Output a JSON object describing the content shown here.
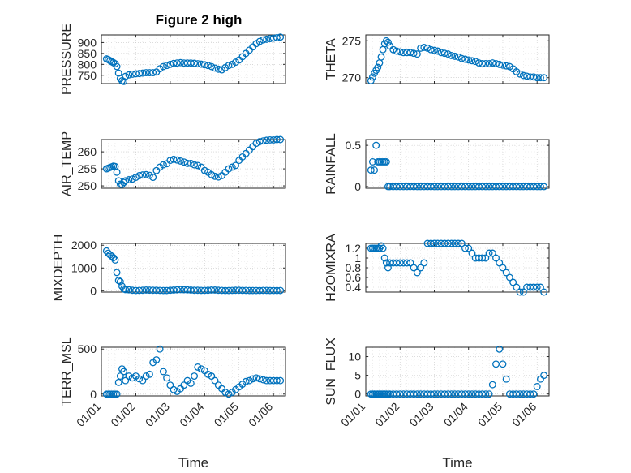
{
  "figure": {
    "title": "Figure 2 high",
    "marker_color": "#0072BD"
  },
  "chart_data": [
    {
      "id": "pressure",
      "type": "scatter",
      "marker": "circle",
      "ylabel": "PRESSURE",
      "yticks": [
        "750",
        "800",
        "850",
        "900"
      ],
      "ylim": [
        712,
        935
      ],
      "xlim": [
        0,
        5.35
      ],
      "xticklabels": [
        "",
        "",
        "",
        "",
        "",
        ""
      ],
      "xlabel": "",
      "x": [
        0.15,
        0.2,
        0.25,
        0.3,
        0.35,
        0.4,
        0.45,
        0.5,
        0.55,
        0.6,
        0.65,
        0.7,
        0.8,
        0.9,
        1.0,
        1.1,
        1.2,
        1.3,
        1.4,
        1.5,
        1.6,
        1.7,
        1.8,
        1.9,
        2.0,
        2.1,
        2.2,
        2.3,
        2.4,
        2.5,
        2.6,
        2.7,
        2.8,
        2.9,
        3.0,
        3.1,
        3.2,
        3.3,
        3.4,
        3.5,
        3.6,
        3.7,
        3.8,
        3.9,
        4.0,
        4.1,
        4.2,
        4.3,
        4.4,
        4.5,
        4.6,
        4.7,
        4.8,
        4.9,
        5.0,
        5.1,
        5.2
      ],
      "y": [
        825,
        822,
        817,
        812,
        808,
        803,
        790,
        760,
        735,
        725,
        722,
        745,
        752,
        755,
        757,
        758,
        760,
        762,
        762,
        762,
        765,
        780,
        790,
        795,
        800,
        804,
        806,
        808,
        806,
        806,
        806,
        805,
        803,
        801,
        798,
        795,
        790,
        783,
        778,
        775,
        785,
        795,
        800,
        810,
        820,
        835,
        850,
        865,
        880,
        895,
        905,
        912,
        915,
        918,
        920,
        922,
        925
      ]
    },
    {
      "id": "theta",
      "type": "scatter",
      "marker": "circle",
      "ylabel": "THETA",
      "yticks": [
        "270",
        "275"
      ],
      "ylim": [
        269.2,
        275.8
      ],
      "xlim": [
        0,
        5.35
      ],
      "xticklabels": [
        "",
        "",
        "",
        "",
        "",
        ""
      ],
      "xlabel": "",
      "x": [
        0.15,
        0.2,
        0.25,
        0.3,
        0.35,
        0.4,
        0.45,
        0.5,
        0.55,
        0.6,
        0.65,
        0.7,
        0.8,
        0.9,
        1.0,
        1.1,
        1.2,
        1.3,
        1.4,
        1.5,
        1.6,
        1.7,
        1.8,
        1.9,
        2.0,
        2.1,
        2.2,
        2.3,
        2.4,
        2.5,
        2.6,
        2.7,
        2.8,
        2.9,
        3.0,
        3.1,
        3.2,
        3.3,
        3.4,
        3.5,
        3.6,
        3.7,
        3.8,
        3.9,
        4.0,
        4.1,
        4.2,
        4.3,
        4.4,
        4.5,
        4.6,
        4.7,
        4.8,
        4.9,
        5.0,
        5.1,
        5.2
      ],
      "y": [
        269.6,
        270.1,
        270.6,
        271.0,
        271.4,
        272.0,
        272.8,
        273.8,
        274.6,
        275.0,
        274.8,
        274.3,
        273.8,
        273.6,
        273.5,
        273.4,
        273.4,
        273.4,
        273.3,
        273.2,
        274.0,
        274.1,
        274.0,
        273.8,
        273.7,
        273.6,
        273.4,
        273.3,
        273.2,
        273.0,
        272.9,
        272.8,
        272.6,
        272.5,
        272.4,
        272.3,
        272.2,
        272.0,
        271.9,
        271.9,
        271.9,
        272.0,
        271.9,
        271.8,
        271.7,
        271.6,
        271.5,
        271.2,
        270.8,
        270.5,
        270.3,
        270.2,
        270.1,
        270.1,
        270.0,
        270.0,
        270.0
      ]
    },
    {
      "id": "air_temp",
      "type": "scatter",
      "marker": "circle",
      "ylabel": "AIR_TEMP",
      "yticks": [
        "250",
        "255",
        "260"
      ],
      "ylim": [
        249.3,
        263.6
      ],
      "xlim": [
        0,
        5.35
      ],
      "xticklabels": [
        "",
        "",
        "",
        "",
        "",
        ""
      ],
      "xlabel": "",
      "x": [
        0.15,
        0.2,
        0.25,
        0.3,
        0.35,
        0.4,
        0.45,
        0.5,
        0.55,
        0.6,
        0.65,
        0.7,
        0.8,
        0.9,
        1.0,
        1.1,
        1.2,
        1.3,
        1.4,
        1.5,
        1.6,
        1.7,
        1.8,
        1.9,
        2.0,
        2.1,
        2.2,
        2.3,
        2.4,
        2.5,
        2.6,
        2.7,
        2.8,
        2.9,
        3.0,
        3.1,
        3.2,
        3.3,
        3.4,
        3.5,
        3.6,
        3.7,
        3.8,
        3.9,
        4.0,
        4.1,
        4.2,
        4.3,
        4.4,
        4.5,
        4.6,
        4.7,
        4.8,
        4.9,
        5.0,
        5.1,
        5.2
      ],
      "y": [
        255.0,
        255.2,
        255.4,
        255.6,
        255.8,
        255.7,
        254.0,
        251.5,
        250.5,
        250.4,
        251.0,
        251.5,
        251.8,
        252.0,
        252.5,
        253.0,
        253.2,
        253.3,
        253.1,
        252.5,
        254.5,
        255.5,
        256.2,
        256.5,
        257.5,
        257.8,
        257.6,
        257.3,
        257.0,
        256.6,
        256.6,
        256.2,
        256.0,
        255.5,
        254.5,
        254.0,
        253.3,
        252.8,
        252.6,
        253.0,
        254.0,
        255.0,
        255.5,
        256.0,
        257.5,
        258.5,
        259.5,
        260.5,
        261.5,
        262.5,
        263.0,
        263.2,
        263.4,
        263.5,
        263.5,
        263.6,
        263.6
      ]
    },
    {
      "id": "rainfall",
      "type": "scatter",
      "marker": "circle",
      "ylabel": "RAINFALL",
      "yticks": [
        "0",
        "0.5"
      ],
      "ylim": [
        -0.02,
        0.57
      ],
      "xlim": [
        0,
        5.35
      ],
      "xticklabels": [
        "",
        "",
        "",
        "",
        "",
        ""
      ],
      "xlabel": "",
      "x": [
        0.15,
        0.2,
        0.25,
        0.3,
        0.35,
        0.4,
        0.45,
        0.5,
        0.55,
        0.6,
        0.65,
        0.7,
        0.8,
        0.9,
        1.0,
        1.1,
        1.2,
        1.3,
        1.4,
        1.5,
        1.6,
        1.7,
        1.8,
        1.9,
        2.0,
        2.1,
        2.2,
        2.3,
        2.4,
        2.5,
        2.6,
        2.7,
        2.8,
        2.9,
        3.0,
        3.1,
        3.2,
        3.3,
        3.4,
        3.5,
        3.6,
        3.7,
        3.8,
        3.9,
        4.0,
        4.1,
        4.2,
        4.3,
        4.4,
        4.5,
        4.6,
        4.7,
        4.8,
        4.9,
        5.0,
        5.1,
        5.2
      ],
      "y": [
        0.2,
        0.3,
        0.2,
        0.5,
        0.3,
        0.3,
        0.3,
        0.3,
        0.3,
        0.3,
        0,
        0,
        0,
        0,
        0,
        0,
        0,
        0,
        0,
        0,
        0,
        0,
        0,
        0,
        0,
        0,
        0,
        0,
        0,
        0,
        0,
        0,
        0,
        0,
        0,
        0,
        0,
        0,
        0,
        0,
        0,
        0,
        0,
        0,
        0,
        0,
        0,
        0,
        0,
        0,
        0,
        0,
        0,
        0,
        0,
        0,
        0
      ]
    },
    {
      "id": "mixdepth",
      "type": "scatter",
      "marker": "circle",
      "ylabel": "MIXDEPTH",
      "yticks": [
        "0",
        "1000",
        "2000"
      ],
      "ylim": [
        -60,
        2080
      ],
      "xlim": [
        0,
        5.35
      ],
      "xticklabels": [
        "",
        "",
        "",
        "",
        "",
        ""
      ],
      "xlabel": "",
      "x": [
        0.15,
        0.2,
        0.25,
        0.3,
        0.35,
        0.4,
        0.45,
        0.5,
        0.55,
        0.6,
        0.65,
        0.7,
        0.8,
        0.9,
        1.0,
        1.1,
        1.2,
        1.3,
        1.4,
        1.5,
        1.6,
        1.7,
        1.8,
        1.9,
        2.0,
        2.1,
        2.2,
        2.3,
        2.4,
        2.5,
        2.6,
        2.7,
        2.8,
        2.9,
        3.0,
        3.1,
        3.2,
        3.3,
        3.4,
        3.5,
        3.6,
        3.7,
        3.8,
        3.9,
        4.0,
        4.1,
        4.2,
        4.3,
        4.4,
        4.5,
        4.6,
        4.7,
        4.8,
        4.9,
        5.0,
        5.1,
        5.2
      ],
      "y": [
        1750,
        1650,
        1580,
        1520,
        1450,
        1350,
        800,
        450,
        400,
        200,
        80,
        50,
        40,
        20,
        10,
        15,
        20,
        30,
        25,
        20,
        20,
        15,
        10,
        10,
        20,
        30,
        40,
        50,
        45,
        40,
        30,
        20,
        20,
        15,
        15,
        20,
        30,
        30,
        20,
        15,
        10,
        10,
        15,
        20,
        20,
        15,
        15,
        10,
        10,
        10,
        10,
        15,
        15,
        10,
        10,
        10,
        10
      ]
    },
    {
      "id": "h2omixra",
      "type": "scatter",
      "marker": "circle",
      "ylabel": "H2OMIXRA",
      "yticks": [
        "0.4",
        "0.6",
        "0.8",
        "1",
        "1.2"
      ],
      "ylim": [
        0.3,
        1.3
      ],
      "xlim": [
        0,
        5.35
      ],
      "xticklabels": [
        "",
        "",
        "",
        "",
        "",
        ""
      ],
      "xlabel": "",
      "x": [
        0.15,
        0.2,
        0.25,
        0.3,
        0.35,
        0.4,
        0.45,
        0.5,
        0.55,
        0.6,
        0.65,
        0.7,
        0.8,
        0.9,
        1.0,
        1.1,
        1.2,
        1.3,
        1.4,
        1.5,
        1.6,
        1.7,
        1.8,
        1.9,
        2.0,
        2.1,
        2.2,
        2.3,
        2.4,
        2.5,
        2.6,
        2.7,
        2.8,
        2.9,
        3.0,
        3.1,
        3.2,
        3.3,
        3.4,
        3.5,
        3.6,
        3.7,
        3.8,
        3.9,
        4.0,
        4.1,
        4.2,
        4.3,
        4.4,
        4.5,
        4.6,
        4.7,
        4.8,
        4.9,
        5.0,
        5.1,
        5.2
      ],
      "y": [
        1.2,
        1.2,
        1.2,
        1.2,
        1.2,
        1.2,
        1.25,
        1.2,
        1.0,
        0.9,
        0.8,
        0.9,
        0.9,
        0.9,
        0.9,
        0.9,
        0.9,
        0.9,
        0.8,
        0.7,
        0.8,
        0.9,
        1.3,
        1.3,
        1.3,
        1.3,
        1.3,
        1.3,
        1.3,
        1.3,
        1.3,
        1.3,
        1.3,
        1.2,
        1.2,
        1.1,
        1.0,
        1.0,
        1.0,
        1.0,
        1.1,
        1.1,
        1.0,
        0.9,
        0.8,
        0.7,
        0.6,
        0.5,
        0.4,
        0.3,
        0.3,
        0.4,
        0.4,
        0.4,
        0.4,
        0.4,
        0.3
      ]
    },
    {
      "id": "terr_msl",
      "type": "scatter",
      "marker": "circle",
      "ylabel": "TERR_MSL",
      "yticks": [
        "0",
        "500"
      ],
      "ylim": [
        -20,
        520
      ],
      "xlim": [
        0,
        5.35
      ],
      "xticklabels": [
        "01/01",
        "01/02",
        "01/03",
        "01/04",
        "01/05",
        "01/06"
      ],
      "xlabel": "Time",
      "x": [
        0.15,
        0.2,
        0.25,
        0.3,
        0.35,
        0.4,
        0.45,
        0.5,
        0.55,
        0.6,
        0.65,
        0.7,
        0.8,
        0.9,
        1.0,
        1.1,
        1.2,
        1.3,
        1.4,
        1.5,
        1.6,
        1.7,
        1.8,
        1.9,
        2.0,
        2.1,
        2.2,
        2.3,
        2.4,
        2.5,
        2.6,
        2.7,
        2.8,
        2.9,
        3.0,
        3.1,
        3.2,
        3.3,
        3.4,
        3.5,
        3.6,
        3.7,
        3.8,
        3.9,
        4.0,
        4.1,
        4.2,
        4.3,
        4.4,
        4.5,
        4.6,
        4.7,
        4.8,
        4.9,
        5.0,
        5.1,
        5.2
      ],
      "y": [
        0,
        0,
        0,
        0,
        0,
        0,
        0,
        130,
        200,
        280,
        250,
        150,
        200,
        180,
        200,
        170,
        150,
        200,
        220,
        350,
        380,
        500,
        250,
        180,
        100,
        50,
        30,
        60,
        100,
        150,
        120,
        200,
        300,
        280,
        260,
        220,
        200,
        150,
        100,
        60,
        20,
        0,
        20,
        50,
        80,
        110,
        140,
        150,
        170,
        180,
        170,
        160,
        150,
        150,
        150,
        150,
        150
      ]
    },
    {
      "id": "sun_flux",
      "type": "scatter",
      "marker": "circle",
      "ylabel": "SUN_FLUX",
      "yticks": [
        "0",
        "5",
        "10"
      ],
      "ylim": [
        -0.5,
        12.5
      ],
      "xlim": [
        0,
        5.35
      ],
      "xticklabels": [
        "01/01",
        "01/02",
        "01/03",
        "01/04",
        "01/05",
        "01/06"
      ],
      "xlabel": "Time",
      "x": [
        0.15,
        0.2,
        0.25,
        0.3,
        0.35,
        0.4,
        0.45,
        0.5,
        0.55,
        0.6,
        0.65,
        0.7,
        0.8,
        0.9,
        1.0,
        1.1,
        1.2,
        1.3,
        1.4,
        1.5,
        1.6,
        1.7,
        1.8,
        1.9,
        2.0,
        2.1,
        2.2,
        2.3,
        2.4,
        2.5,
        2.6,
        2.7,
        2.8,
        2.9,
        3.0,
        3.1,
        3.2,
        3.3,
        3.4,
        3.5,
        3.6,
        3.7,
        3.8,
        3.9,
        4.0,
        4.1,
        4.2,
        4.3,
        4.4,
        4.5,
        4.6,
        4.7,
        4.8,
        4.9,
        5.0,
        5.1,
        5.2
      ],
      "y": [
        0,
        0,
        0,
        0,
        0,
        0,
        0,
        0,
        0,
        0,
        0,
        0,
        0,
        0,
        0,
        0,
        0,
        0,
        0,
        0,
        0,
        0,
        0,
        0,
        0,
        0,
        0,
        0,
        0,
        0,
        0,
        0,
        0,
        0,
        0,
        0,
        0,
        0,
        0,
        0,
        0,
        2.5,
        8,
        12,
        8,
        4,
        0,
        0,
        0,
        0,
        0,
        0,
        0,
        0,
        2,
        4,
        5
      ]
    }
  ]
}
